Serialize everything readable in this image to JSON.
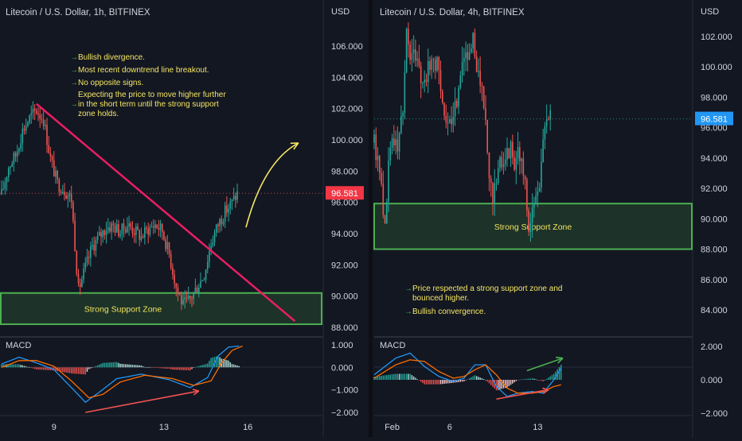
{
  "chart_data": [
    {
      "type": "candlestick",
      "title": "Litecoin / U.S. Dollar, 1h, BITFINEX",
      "currency_label": "USD",
      "ylim": [
        88,
        107.5
      ],
      "yticks": [
        {
          "v": 106,
          "t": "106.000"
        },
        {
          "v": 104,
          "t": "104.000"
        },
        {
          "v": 102,
          "t": "102.000"
        },
        {
          "v": 100,
          "t": "100.000"
        },
        {
          "v": 98,
          "t": "98.000"
        },
        {
          "v": 96,
          "t": "96.000"
        },
        {
          "v": 94,
          "t": "94.000"
        },
        {
          "v": 92,
          "t": "92.000"
        },
        {
          "v": 90,
          "t": "90.000"
        },
        {
          "v": 88,
          "t": "88.000"
        }
      ],
      "x_range": [
        0,
        140
      ],
      "xticks": [
        {
          "x": 30,
          "t": "9"
        },
        {
          "x": 93,
          "t": "13"
        },
        {
          "x": 141,
          "t": "16"
        }
      ],
      "last_price": 96.581,
      "last_price_label": "96.581",
      "price_path": [
        [
          0,
          96.5
        ],
        [
          4,
          98.3
        ],
        [
          8,
          99.0
        ],
        [
          12,
          100.6
        ],
        [
          16,
          101.4
        ],
        [
          20,
          101.9
        ],
        [
          24,
          101.3
        ],
        [
          28,
          98.8
        ],
        [
          32,
          97.2
        ],
        [
          36,
          96.8
        ],
        [
          40,
          96.2
        ],
        [
          44,
          90.4
        ],
        [
          48,
          91.8
        ],
        [
          52,
          93.2
        ],
        [
          56,
          93.8
        ],
        [
          60,
          94.4
        ],
        [
          64,
          94.5
        ],
        [
          68,
          94.1
        ],
        [
          72,
          94.6
        ],
        [
          76,
          94.2
        ],
        [
          80,
          93.8
        ],
        [
          84,
          94.3
        ],
        [
          88,
          94.6
        ],
        [
          92,
          94.2
        ],
        [
          96,
          92.7
        ],
        [
          100,
          90.6
        ],
        [
          104,
          89.4
        ],
        [
          108,
          89.8
        ],
        [
          112,
          90.6
        ],
        [
          116,
          91.4
        ],
        [
          120,
          93.4
        ],
        [
          124,
          94.6
        ],
        [
          128,
          95.4
        ],
        [
          132,
          96.0
        ],
        [
          135,
          96.58
        ]
      ],
      "support_zone": {
        "low": 88.2,
        "high": 90.2,
        "label": "Strong Support Zone"
      },
      "trendline": [
        [
          20,
          102.3
        ],
        [
          168,
          88.4
        ]
      ],
      "projection_arrow": {
        "from": [
          140,
          94.4
        ],
        "via": [
          150,
          98.6
        ],
        "to": [
          170,
          99.8
        ]
      },
      "annotations": [
        "Bullish divergence.",
        "Most recent downtrend line breakout.",
        "No opposite signs.",
        "Expecting the price to move higher further",
        "in the short term until the strong support",
        "zone holds."
      ],
      "macd": {
        "label": "MACD",
        "ylim": [
          -2,
          1.2
        ],
        "yticks": [
          {
            "v": 1,
            "t": "1.000"
          },
          {
            "v": 0,
            "t": "0.000"
          },
          {
            "v": -1,
            "t": "−1.000"
          },
          {
            "v": -2,
            "t": "−2.000"
          }
        ],
        "macd_path": [
          [
            0,
            0.15
          ],
          [
            10,
            0.45
          ],
          [
            20,
            0.2
          ],
          [
            30,
            -0.1
          ],
          [
            40,
            -0.9
          ],
          [
            48,
            -1.55
          ],
          [
            56,
            -1.1
          ],
          [
            66,
            -0.5
          ],
          [
            80,
            -0.3
          ],
          [
            96,
            -0.55
          ],
          [
            108,
            -0.9
          ],
          [
            118,
            -0.45
          ],
          [
            124,
            0.5
          ],
          [
            130,
            0.9
          ],
          [
            136,
            0.95
          ]
        ],
        "signal_path": [
          [
            0,
            0.0
          ],
          [
            10,
            0.3
          ],
          [
            20,
            0.3
          ],
          [
            30,
            0.05
          ],
          [
            40,
            -0.6
          ],
          [
            50,
            -1.35
          ],
          [
            58,
            -1.2
          ],
          [
            68,
            -0.65
          ],
          [
            82,
            -0.35
          ],
          [
            98,
            -0.5
          ],
          [
            110,
            -0.8
          ],
          [
            120,
            -0.6
          ],
          [
            126,
            0.2
          ],
          [
            132,
            0.75
          ],
          [
            138,
            0.95
          ]
        ],
        "divergence_arrow": [
          [
            48,
            -2.0
          ],
          [
            113,
            -1.05
          ]
        ]
      }
    },
    {
      "type": "candlestick",
      "title": "Litecoin / U.S. Dollar, 4h, BITFINEX",
      "currency_label": "USD",
      "ylim": [
        82.5,
        104
      ],
      "yticks": [
        {
          "v": 102,
          "t": "102.000"
        },
        {
          "v": 100,
          "t": "100.000"
        },
        {
          "v": 98,
          "t": "98.000"
        },
        {
          "v": 96,
          "t": "96.000"
        },
        {
          "v": 94,
          "t": "94.000"
        },
        {
          "v": 92,
          "t": "92.000"
        },
        {
          "v": 90,
          "t": "90.000"
        },
        {
          "v": 88,
          "t": "88.000"
        },
        {
          "v": 86,
          "t": "86.000"
        },
        {
          "v": 84,
          "t": "84.000"
        }
      ],
      "x_range": [
        0,
        140
      ],
      "xticks": [
        {
          "x": 10,
          "t": "Feb"
        },
        {
          "x": 42,
          "t": "6"
        },
        {
          "x": 91,
          "t": "13"
        }
      ],
      "last_price": 96.581,
      "last_price_label": "96.581",
      "price_path": [
        [
          0,
          95.0
        ],
        [
          4,
          92.5
        ],
        [
          6,
          89.2
        ],
        [
          8,
          93.5
        ],
        [
          10,
          95.6
        ],
        [
          13,
          94.5
        ],
        [
          16,
          97.5
        ],
        [
          18,
          102.4
        ],
        [
          20,
          100.6
        ],
        [
          24,
          100.8
        ],
        [
          27,
          98.8
        ],
        [
          30,
          99.8
        ],
        [
          33,
          100.5
        ],
        [
          36,
          99.8
        ],
        [
          40,
          96.2
        ],
        [
          43,
          95.8
        ],
        [
          45,
          97.2
        ],
        [
          48,
          99.6
        ],
        [
          50,
          101.2
        ],
        [
          53,
          100.4
        ],
        [
          55,
          101.6
        ],
        [
          58,
          99.6
        ],
        [
          60,
          98.2
        ],
        [
          62,
          96.5
        ],
        [
          64,
          92.3
        ],
        [
          66,
          91.6
        ],
        [
          68,
          92.2
        ],
        [
          70,
          93.6
        ],
        [
          73,
          94.4
        ],
        [
          76,
          94.6
        ],
        [
          78,
          93.8
        ],
        [
          80,
          94.6
        ],
        [
          82,
          93.6
        ],
        [
          84,
          92.0
        ],
        [
          86,
          89.2
        ],
        [
          88,
          90.6
        ],
        [
          90,
          91.2
        ],
        [
          92,
          92.4
        ],
        [
          94,
          95.4
        ],
        [
          96,
          96.6
        ],
        [
          98,
          96.58
        ]
      ],
      "support_zone": {
        "low": 88.0,
        "high": 91.0,
        "label": "Strong Support Zone"
      },
      "annotations": [
        "Price respected a strong support zone and",
        "bounced higher.",
        "Bullish convergence."
      ],
      "macd": {
        "label": "MACD",
        "ylim": [
          -2,
          2.4
        ],
        "yticks": [
          {
            "v": 2,
            "t": "2.000"
          },
          {
            "v": 0,
            "t": "0.000"
          },
          {
            "v": -2,
            "t": "−2.000"
          }
        ],
        "macd_path": [
          [
            0,
            0.3
          ],
          [
            6,
            0.8
          ],
          [
            12,
            1.3
          ],
          [
            20,
            1.6
          ],
          [
            28,
            0.8
          ],
          [
            36,
            0.2
          ],
          [
            44,
            -0.1
          ],
          [
            50,
            0.1
          ],
          [
            56,
            0.9
          ],
          [
            62,
            0.9
          ],
          [
            68,
            -0.4
          ],
          [
            74,
            -1.0
          ],
          [
            80,
            -0.8
          ],
          [
            88,
            -0.7
          ],
          [
            94,
            -0.8
          ],
          [
            100,
            0.0
          ],
          [
            104,
            0.7
          ]
        ],
        "signal_path": [
          [
            0,
            0.1
          ],
          [
            6,
            0.5
          ],
          [
            12,
            0.9
          ],
          [
            20,
            1.2
          ],
          [
            28,
            1.1
          ],
          [
            36,
            0.5
          ],
          [
            44,
            0.1
          ],
          [
            50,
            0.2
          ],
          [
            56,
            0.6
          ],
          [
            62,
            0.9
          ],
          [
            68,
            0.3
          ],
          [
            74,
            -0.5
          ],
          [
            80,
            -0.8
          ],
          [
            88,
            -0.8
          ],
          [
            94,
            -0.7
          ],
          [
            100,
            -0.4
          ],
          [
            104,
            -0.3
          ]
        ],
        "divergence_arrow": [
          [
            68,
            -1.15
          ],
          [
            97,
            -0.6
          ]
        ],
        "convergence_arrow": [
          [
            85,
            0.55
          ],
          [
            105,
            1.3
          ]
        ]
      }
    }
  ]
}
